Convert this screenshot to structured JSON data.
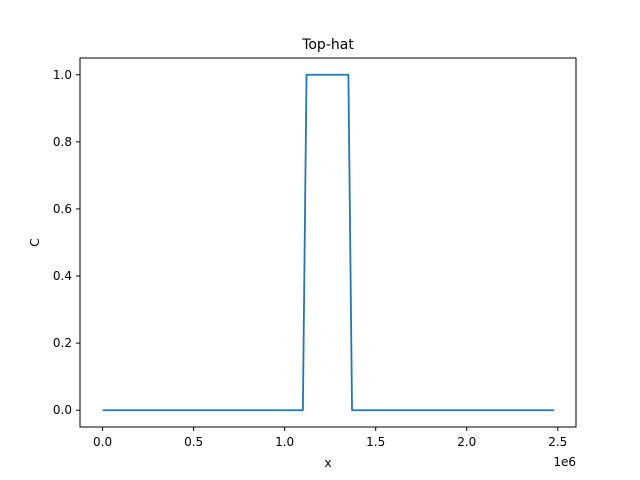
{
  "chart_data": {
    "type": "line",
    "title": "Top-hat",
    "xlabel": "x",
    "ylabel": "C",
    "x_offset_text": "1e6",
    "xlim": [
      -0.124,
      2.6
    ],
    "ylim": [
      -0.05,
      1.05
    ],
    "xticks": [
      0.0,
      0.5,
      1.0,
      1.5,
      2.0,
      2.5
    ],
    "xtick_labels": [
      "0.0",
      "0.5",
      "1.0",
      "1.5",
      "2.0",
      "2.5"
    ],
    "yticks": [
      0.0,
      0.2,
      0.4,
      0.6,
      0.8,
      1.0
    ],
    "ytick_labels": [
      "0.0",
      "0.2",
      "0.4",
      "0.6",
      "0.8",
      "1.0"
    ],
    "grid": false,
    "legend": "none",
    "series": [
      {
        "color": "#1f77b4",
        "x": [
          0.0,
          1.1,
          1.12,
          1.35,
          1.37,
          2.48
        ],
        "y": [
          0.0,
          0.0,
          1.0,
          1.0,
          0.0,
          0.0
        ]
      }
    ]
  }
}
